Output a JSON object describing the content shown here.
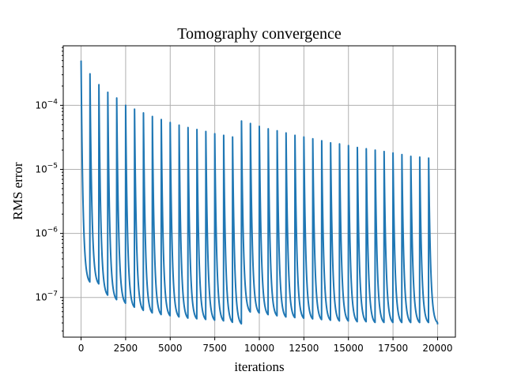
{
  "chart_data": {
    "type": "line",
    "title": "Tomography convergence",
    "xlabel": "iterations",
    "ylabel": "RMS error",
    "xlim": [
      -1000,
      21000
    ],
    "ylim": [
      2.4e-08,
      0.00085
    ],
    "yscale": "log",
    "grid": true,
    "x_ticks": [
      0,
      2500,
      5000,
      7500,
      10000,
      12500,
      15000,
      17500,
      20000
    ],
    "x_tick_labels": [
      "0",
      "2500",
      "5000",
      "7500",
      "10000",
      "12500",
      "15000",
      "17500",
      "20000"
    ],
    "y_ticks": [
      {
        "value": 1e-07,
        "base": "10",
        "exp": "−7"
      },
      {
        "value": 1e-06,
        "base": "10",
        "exp": "−6"
      },
      {
        "value": 1e-05,
        "base": "10",
        "exp": "−5"
      },
      {
        "value": 0.0001,
        "base": "10",
        "exp": "−4"
      }
    ],
    "series": [
      {
        "color": "#1f77b4",
        "restart_length": 500,
        "cycle_starts": [
          0,
          500,
          1000,
          1500,
          2000,
          2500,
          3000,
          3500,
          4000,
          4500,
          5000,
          5500,
          6000,
          6500,
          7000,
          7500,
          8000,
          8500,
          9000,
          9500,
          10000,
          10500,
          11000,
          11500,
          12000,
          12500,
          13000,
          13500,
          14000,
          14500,
          15000,
          15500,
          16000,
          16500,
          17000,
          17500,
          18000,
          18500,
          19000,
          19500
        ],
        "peaks": [
          0.0005,
          0.00031,
          0.00021,
          0.00016,
          0.00013,
          0.0001,
          8.7e-05,
          7.6e-05,
          6.7e-05,
          6e-05,
          5.4e-05,
          4.9e-05,
          4.5e-05,
          4.2e-05,
          3.9e-05,
          3.6e-05,
          3.4e-05,
          3.2e-05,
          5.7e-05,
          5.2e-05,
          4.7e-05,
          4.3e-05,
          4e-05,
          3.7e-05,
          3.4e-05,
          3.2e-05,
          3e-05,
          2.8e-05,
          2.6e-05,
          2.5e-05,
          2.35e-05,
          2.2e-05,
          2.1e-05,
          2e-05,
          1.9e-05,
          1.8e-05,
          1.7e-05,
          1.6e-05,
          1.55e-05,
          1.5e-05
        ],
        "troughs": [
          1.6e-07,
          1.5e-07,
          1e-07,
          8.5e-08,
          7.5e-08,
          6.5e-08,
          5.8e-08,
          5.3e-08,
          5e-08,
          4.8e-08,
          4.6e-08,
          4.4e-08,
          4.3e-08,
          4.2e-08,
          4.1e-08,
          4e-08,
          3.8e-08,
          3.6e-08,
          5.5e-08,
          5.3e-08,
          5e-08,
          4.8e-08,
          4.6e-08,
          4.5e-08,
          4.4e-08,
          4.3e-08,
          4.2e-08,
          4.1e-08,
          4e-08,
          4e-08,
          3.9e-08,
          3.9e-08,
          3.8e-08,
          3.8e-08,
          3.8e-08,
          3.8e-08,
          3.8e-08,
          3.8e-08,
          3.8e-08,
          3.8e-08
        ],
        "final_x": 20000,
        "final_y": 3.8e-08
      }
    ]
  }
}
